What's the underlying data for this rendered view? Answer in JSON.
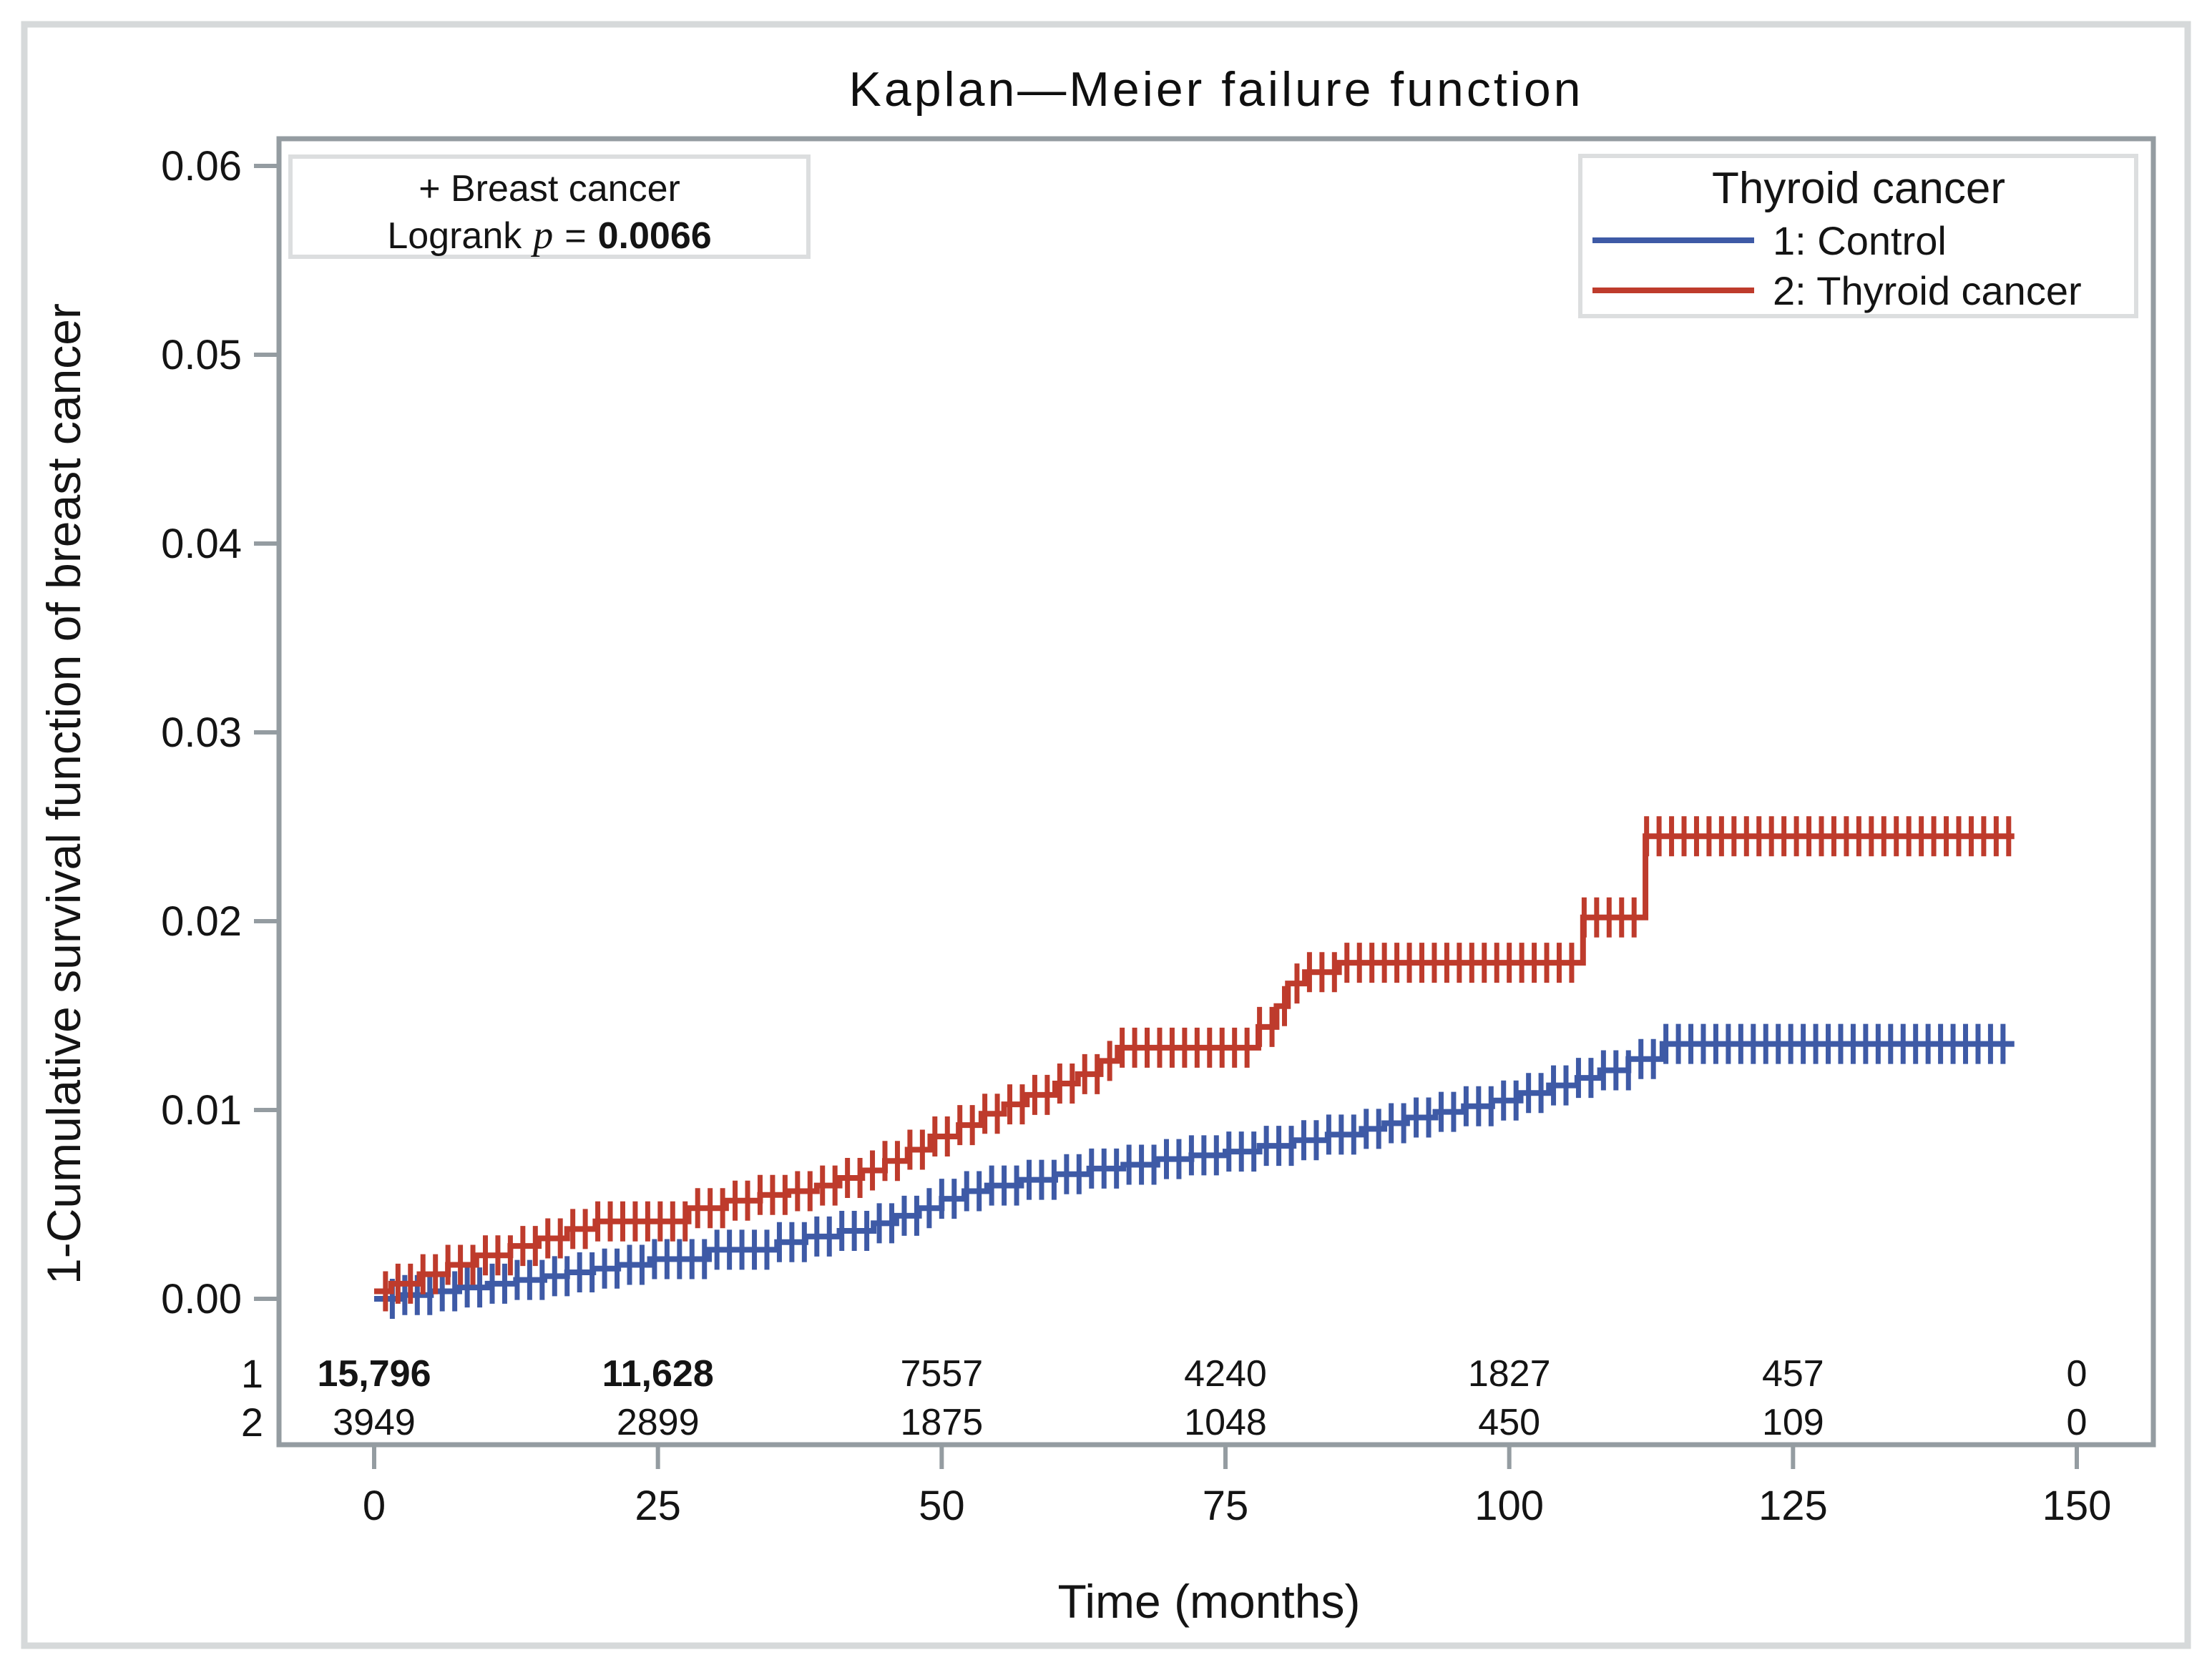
{
  "title": "Kaplan—Meier failure function",
  "annotation": {
    "line1": "+ Breast cancer",
    "line2_prefix": "Logrank",
    "line2_var": "p",
    "line2_eq": "=",
    "line2_value": "0.0066"
  },
  "legend": {
    "title": "Thyroid cancer",
    "items": [
      {
        "label": "1: Control",
        "color": "#3E5AA6"
      },
      {
        "label": "2: Thyroid cancer",
        "color": "#BE3B2C"
      }
    ]
  },
  "colors": {
    "control_blue": "#3E5AA6",
    "thyroid_red": "#BE3B2C",
    "axis_gray": "#949CA1",
    "box_border_gray": "#DCDEDF",
    "outer_frame_gray": "#D6D9DA"
  },
  "chart_data": {
    "type": "line",
    "subtype": "kaplan-meier-failure-step",
    "title": "Kaplan—Meier failure function",
    "xlabel": "Time (months)",
    "ylabel": "1-Cumulative survival function of breast cancer",
    "xlim": [
      0,
      150
    ],
    "ylim": [
      0.0,
      0.06
    ],
    "xticks": [
      0,
      25,
      50,
      75,
      100,
      125,
      150
    ],
    "ytick_labels": [
      "0.00",
      "0.01",
      "0.02",
      "0.03",
      "0.04",
      "0.05",
      "0.06"
    ],
    "grid": false,
    "legend_position": "top-right-inside",
    "logrank_p": "0.0066",
    "series": [
      {
        "name": "1: Control",
        "group": "1",
        "color": "#3E5AA6",
        "end_time": 144.5,
        "steps": [
          [
            0,
            0.0
          ],
          [
            2.5,
            0.0002
          ],
          [
            5,
            0.0004
          ],
          [
            7.5,
            0.0006
          ],
          [
            10,
            0.0008
          ],
          [
            12.5,
            0.001
          ],
          [
            15,
            0.0012
          ],
          [
            17,
            0.0014
          ],
          [
            19.3,
            0.0016
          ],
          [
            21.5,
            0.0018
          ],
          [
            24.3,
            0.0021
          ],
          [
            29.5,
            0.0026
          ],
          [
            35.5,
            0.003
          ],
          [
            38,
            0.0033
          ],
          [
            41,
            0.0036
          ],
          [
            44,
            0.004
          ],
          [
            46,
            0.0044
          ],
          [
            48,
            0.0048
          ],
          [
            50,
            0.0053
          ],
          [
            52,
            0.0057
          ],
          [
            54,
            0.006
          ],
          [
            57,
            0.0063
          ],
          [
            60,
            0.0066
          ],
          [
            63,
            0.0069
          ],
          [
            66,
            0.0071
          ],
          [
            69,
            0.0074
          ],
          [
            72,
            0.0076
          ],
          [
            75,
            0.0078
          ],
          [
            78,
            0.0081
          ],
          [
            81,
            0.0084
          ],
          [
            84,
            0.0087
          ],
          [
            87,
            0.009
          ],
          [
            89,
            0.0093
          ],
          [
            91,
            0.0096
          ],
          [
            93.5,
            0.0099
          ],
          [
            96,
            0.0102
          ],
          [
            98.5,
            0.0105
          ],
          [
            101,
            0.0109
          ],
          [
            103.5,
            0.0113
          ],
          [
            106,
            0.0117
          ],
          [
            108,
            0.0121
          ],
          [
            110.5,
            0.0127
          ],
          [
            113.5,
            0.0135
          ]
        ],
        "censor_marks": {
          "start": 1.6,
          "step": 1.1,
          "end": 143.5
        }
      },
      {
        "name": "2: Thyroid cancer",
        "group": "2",
        "color": "#BE3B2C",
        "end_time": 144.5,
        "steps": [
          [
            0,
            0.0004
          ],
          [
            1.5,
            0.0008
          ],
          [
            4,
            0.0013
          ],
          [
            6.5,
            0.0018
          ],
          [
            9,
            0.0023
          ],
          [
            12,
            0.0028
          ],
          [
            14.5,
            0.0032
          ],
          [
            17,
            0.0037
          ],
          [
            19.5,
            0.0041
          ],
          [
            27.7,
            0.0048
          ],
          [
            31,
            0.0052
          ],
          [
            34,
            0.0055
          ],
          [
            36.5,
            0.0057
          ],
          [
            39,
            0.006
          ],
          [
            41,
            0.0064
          ],
          [
            43,
            0.0068
          ],
          [
            45,
            0.0073
          ],
          [
            47,
            0.0079
          ],
          [
            49,
            0.0086
          ],
          [
            51.5,
            0.0092
          ],
          [
            53.5,
            0.0098
          ],
          [
            55.5,
            0.0103
          ],
          [
            57.5,
            0.0108
          ],
          [
            60,
            0.0114
          ],
          [
            62,
            0.0119
          ],
          [
            64,
            0.0126
          ],
          [
            65.5,
            0.0133
          ],
          [
            77.9,
            0.0144
          ],
          [
            79.5,
            0.0155
          ],
          [
            80.5,
            0.0167
          ],
          [
            82,
            0.0173
          ],
          [
            85,
            0.0178
          ],
          [
            106.5,
            0.0202
          ],
          [
            112,
            0.0245
          ]
        ],
        "censor_marks": {
          "start": 1.0,
          "step": 1.1,
          "end": 144.0
        }
      }
    ]
  },
  "risk_table": {
    "at_times": [
      0,
      25,
      50,
      75,
      100,
      125,
      150
    ],
    "rows": [
      {
        "label": "1",
        "values": [
          "15,796",
          "11,628",
          "7557",
          "4240",
          "1827",
          "457",
          "0"
        ]
      },
      {
        "label": "2",
        "values": [
          "3949",
          "2899",
          "1875",
          "1048",
          "450",
          "109",
          "0"
        ]
      }
    ]
  }
}
